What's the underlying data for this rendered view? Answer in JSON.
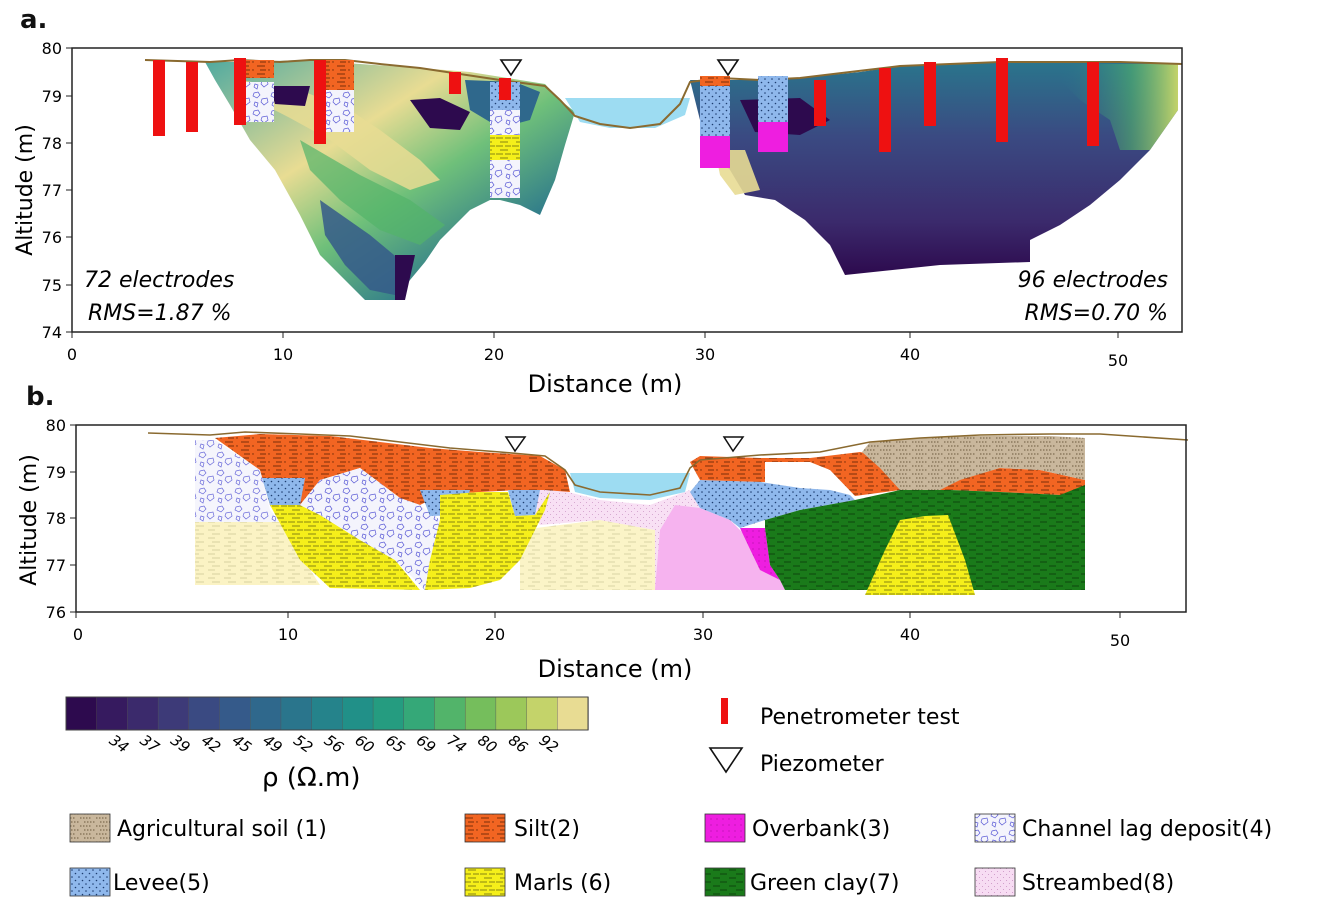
{
  "panel_a": {
    "label": "a.",
    "y_ticks": [
      "80",
      "79",
      "78",
      "77",
      "76",
      "75",
      "74"
    ],
    "x_ticks": [
      "0",
      "10",
      "20",
      "30",
      "40",
      "50"
    ],
    "ylabel": "Altitude (m)",
    "xlabel": "Distance (m)",
    "left_annot_1": "72 electrodes",
    "left_annot_2": "RMS=1.87 %",
    "right_annot_1": "96 electrodes",
    "right_annot_2": "RMS=0.70 %"
  },
  "panel_b": {
    "label": "b.",
    "y_ticks": [
      "80",
      "79",
      "78",
      "77",
      "76"
    ],
    "x_ticks": [
      "0",
      "10",
      "20",
      "30",
      "40",
      "50"
    ],
    "ylabel": "Altitude (m)",
    "xlabel": "Distance (m)"
  },
  "colorbar": {
    "ticks": [
      "34",
      "37",
      "39",
      "42",
      "45",
      "49",
      "52",
      "56",
      "60",
      "65",
      "69",
      "74",
      "80",
      "86",
      "92"
    ],
    "label": "ρ (Ω.m)",
    "colors": [
      "#2d0a4e",
      "#361a5f",
      "#3b2a6c",
      "#3d3a78",
      "#3a4a82",
      "#355a8a",
      "#2f688c",
      "#2a758c",
      "#25838b",
      "#219088",
      "#259c80",
      "#35a878",
      "#52b46a",
      "#75be5c",
      "#9cc85a",
      "#c4d36a",
      "#e8dc93"
    ]
  },
  "symbols": {
    "penetrometer": "Penetrometer test",
    "piezometer": "Piezometer"
  },
  "legend": {
    "agri": "Agricultural soil (1)",
    "silt": "Silt(2)",
    "overbank": "Overbank(3)",
    "channel": "Channel lag deposit(4)",
    "levee": "Levee(5)",
    "marls": "Marls (6)",
    "green": "Green clay(7)",
    "streambed": "Streambed(8)"
  },
  "colors": {
    "silt": "#f26522",
    "agri": "#c9b79c",
    "overbank": "#ee1ee0",
    "levee": "#8fb8ec",
    "marls": "#f5ef1a",
    "green": "#1a7a1a",
    "streambed": "#f3c9ee",
    "water": "#9ddcf2",
    "penetrometer": "#ee1111"
  }
}
